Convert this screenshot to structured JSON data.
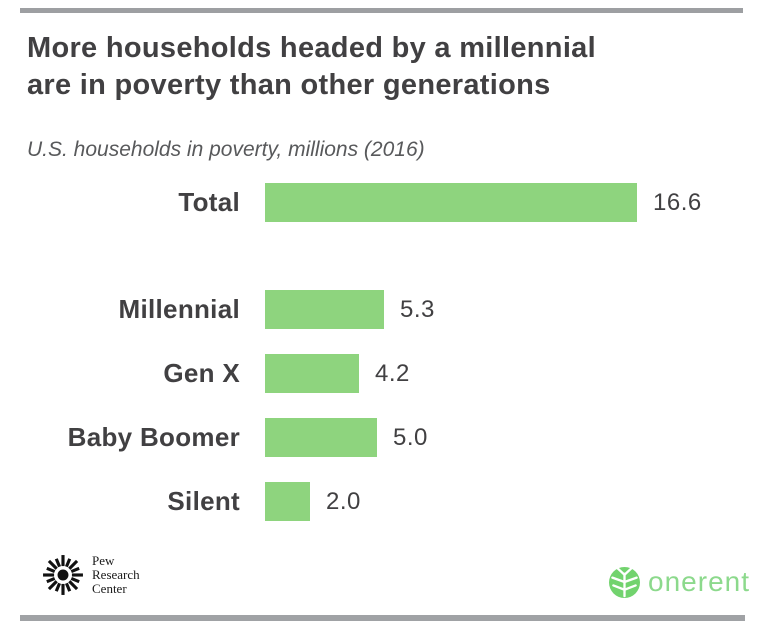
{
  "chart_data": {
    "type": "bar",
    "orientation": "horizontal",
    "title": "More households headed by a millennial are in poverty than other generations",
    "title_lines": [
      "More households headed by a millennial",
      "are in poverty than other generations"
    ],
    "subtitle": "U.S. households in poverty, millions (2016)",
    "categories": [
      "Total",
      "Millennial",
      "Gen X",
      "Baby Boomer",
      "Silent"
    ],
    "values": [
      16.6,
      5.3,
      4.2,
      5.0,
      2.0
    ],
    "value_labels": [
      "16.6",
      "5.3",
      "4.2",
      "5.0",
      "2.0"
    ],
    "groups": [
      "total",
      "generation",
      "generation",
      "generation",
      "generation"
    ],
    "xlim": [
      0,
      16.6
    ],
    "bar_color": "#8ed47e",
    "grid": false,
    "legend": "none",
    "value_label_position": "right-of-bar"
  },
  "footer": {
    "source": {
      "icon": "pew-sunburst-icon",
      "lines": [
        "Pew",
        "Research",
        "Center"
      ]
    },
    "brand": {
      "icon": "onerent-leaf-icon",
      "text": "onerent",
      "color": "#8cd98c"
    }
  },
  "colors": {
    "bar_green": "#8ed47e",
    "title_text": "#414042",
    "subtitle_text": "#58595b",
    "divider_gray": "#9d9fa2",
    "brand_green": "#8cd98c"
  }
}
